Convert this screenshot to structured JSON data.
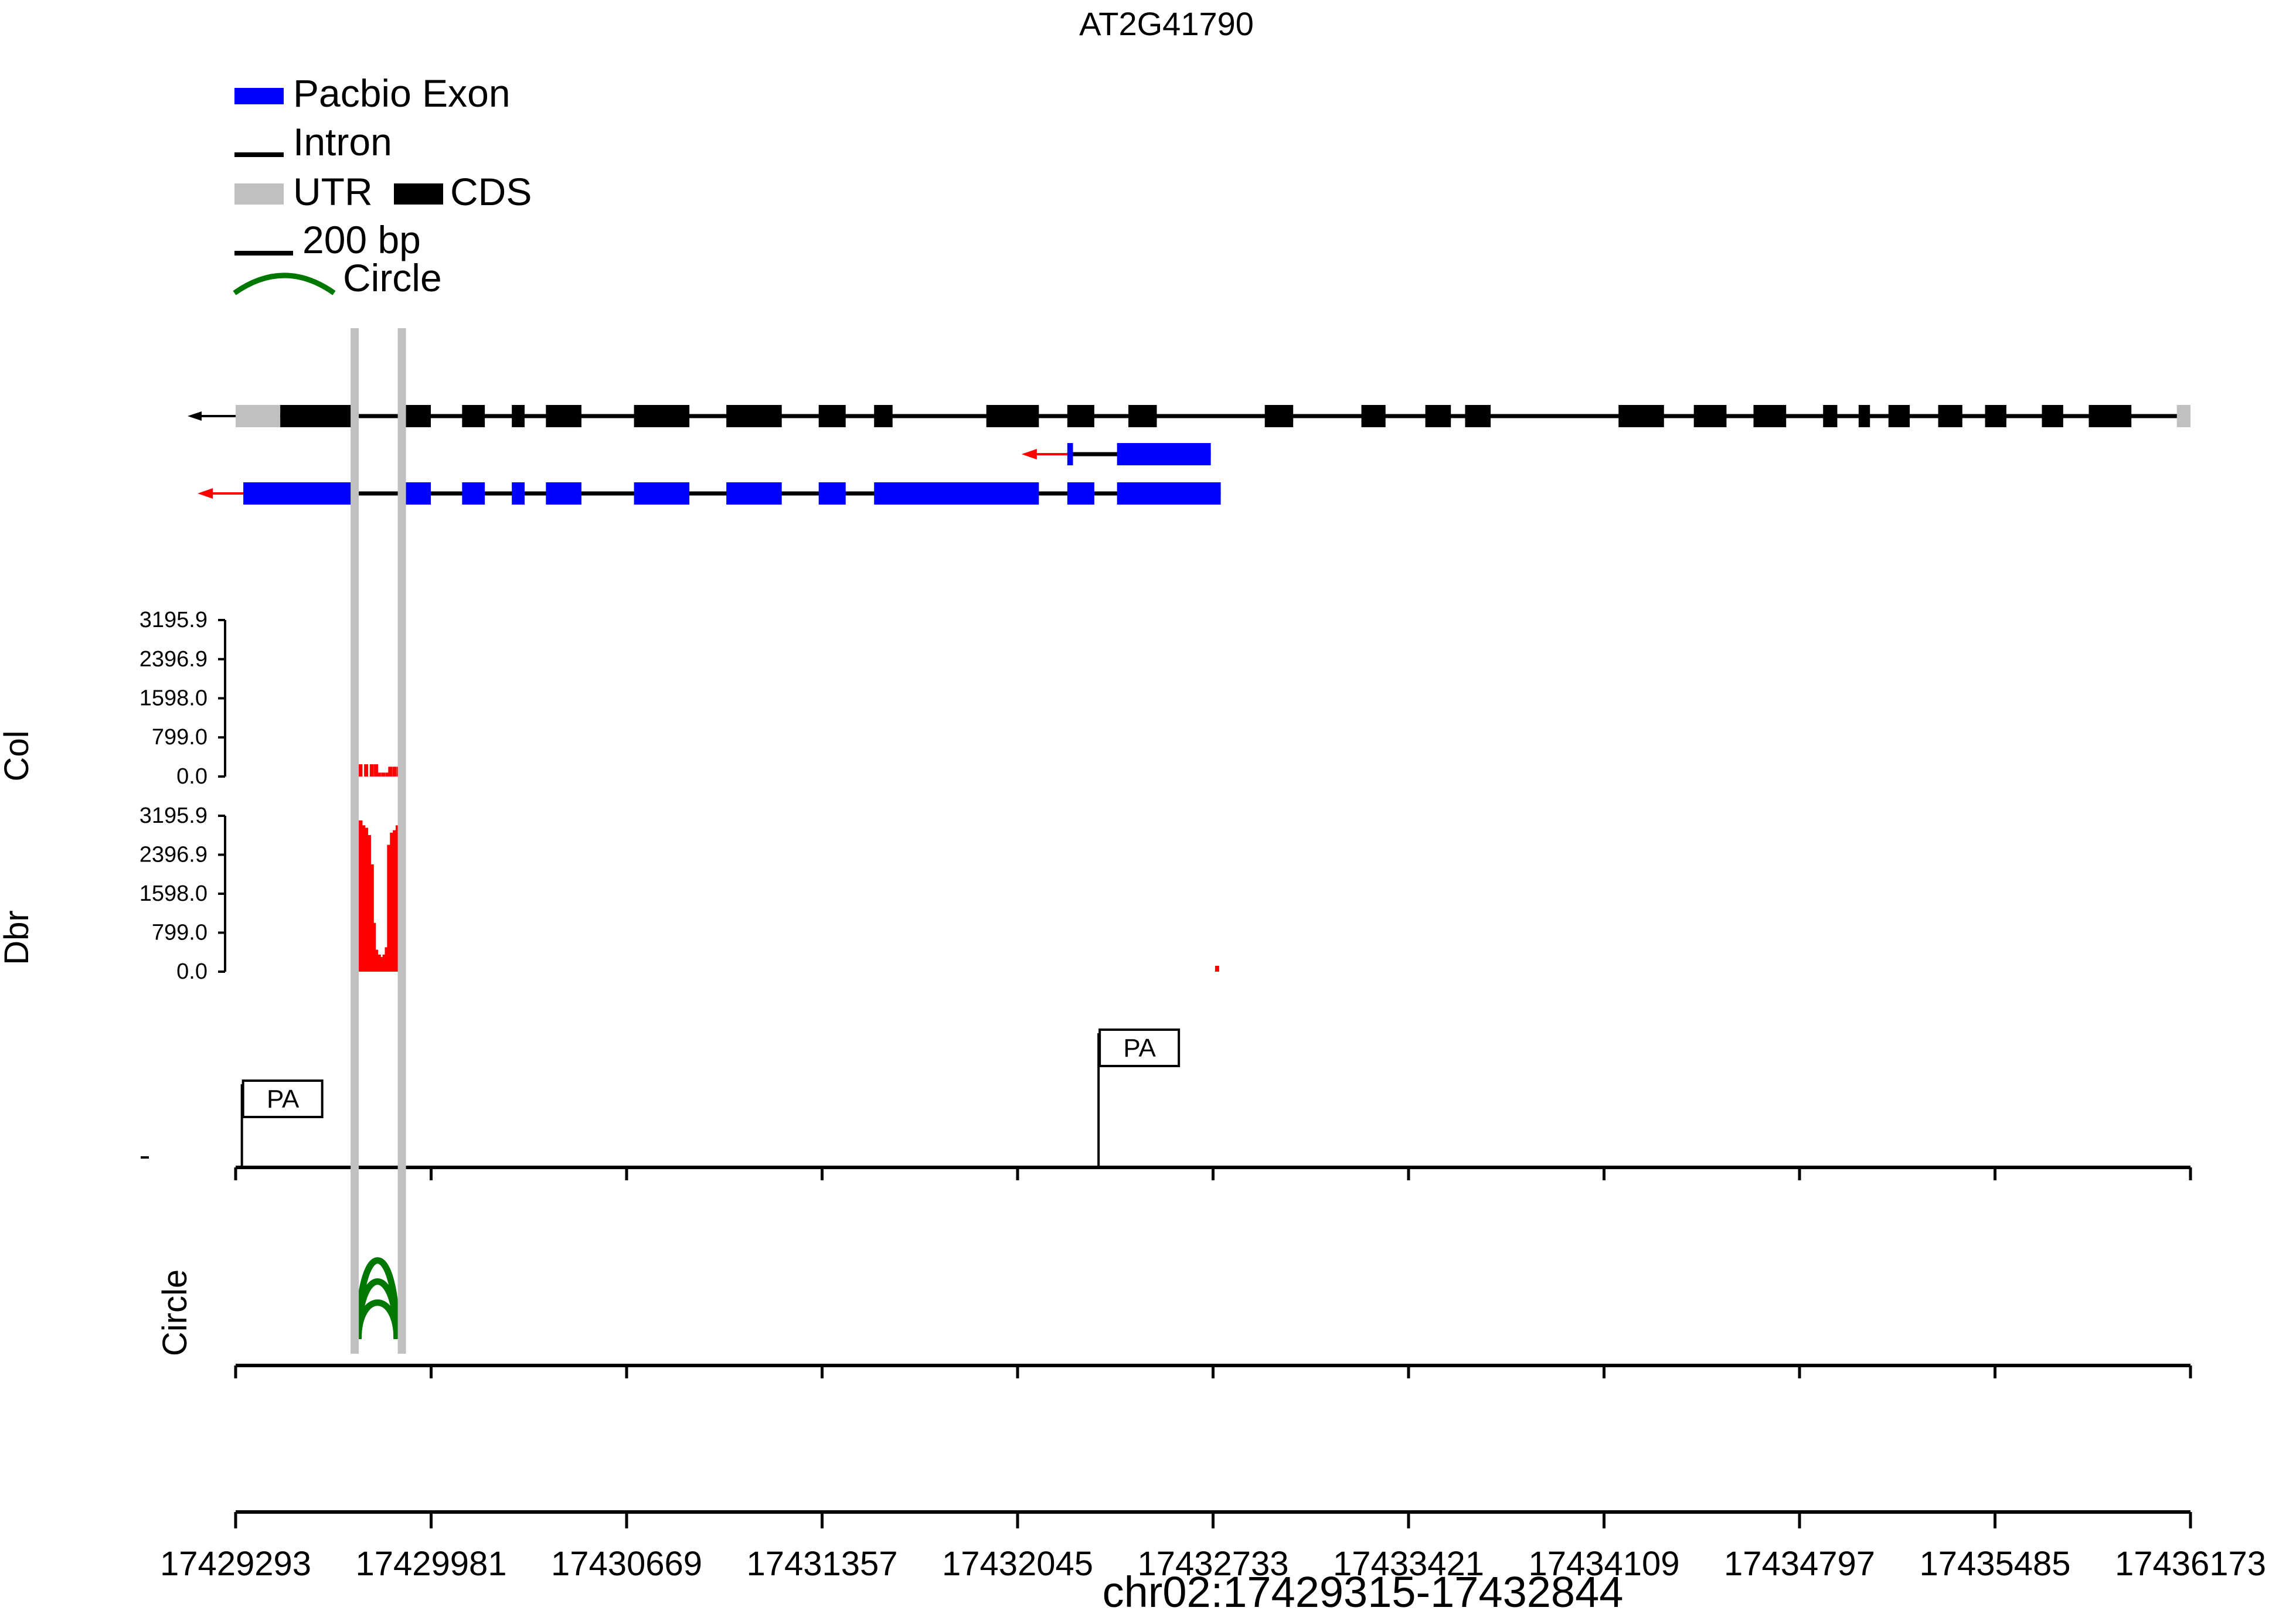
{
  "chart_data": {
    "type": "genome_track",
    "title": "AT2G41790",
    "xlabel": "chr02:17429315-17432844",
    "xlim": [
      17429293,
      17436173
    ],
    "xticks": [
      "17429293",
      "17429981",
      "17430669",
      "17431357",
      "17432045",
      "17432733",
      "17433421",
      "17434109",
      "17434797",
      "17435485",
      "17436173"
    ],
    "legend": {
      "exon": "Pacbio Exon",
      "intron": "Intron",
      "utr": "UTR",
      "cds": "CDS",
      "scale": "200 bp",
      "circle": "Circle"
    },
    "colors": {
      "exon": "#0000ff",
      "intron": "#000000",
      "utr": "#c0c0c0",
      "cds": "#000000",
      "coverage": "#ff0000",
      "circle": "#007700",
      "arrow": "#ff0000",
      "highlight": "#c0c0c0"
    },
    "strand": "minus",
    "highlight_region": [
      17429712,
      17429878
    ],
    "gene_model": {
      "utr": [
        [
          17429293,
          17429450
        ],
        [
          17436125,
          17436173
        ]
      ],
      "cds": [
        [
          17429450,
          17429700
        ],
        [
          17429880,
          17429980
        ],
        [
          17430090,
          17430170
        ],
        [
          17430265,
          17430310
        ],
        [
          17430385,
          17430510
        ],
        [
          17430695,
          17430890
        ],
        [
          17431020,
          17431215
        ],
        [
          17431345,
          17431440
        ],
        [
          17431540,
          17431605
        ],
        [
          17431935,
          17432120
        ],
        [
          17432220,
          17432315
        ],
        [
          17432435,
          17432535
        ],
        [
          17432915,
          17433015
        ],
        [
          17433255,
          17433340
        ],
        [
          17433480,
          17433570
        ],
        [
          17433620,
          17433710
        ],
        [
          17434160,
          17434320
        ],
        [
          17434425,
          17434540
        ],
        [
          17434635,
          17434750
        ],
        [
          17434880,
          17434930
        ],
        [
          17435005,
          17435045
        ],
        [
          17435110,
          17435185
        ],
        [
          17435285,
          17435370
        ],
        [
          17435450,
          17435525
        ],
        [
          17435650,
          17435725
        ],
        [
          17435815,
          17435965
        ]
      ]
    },
    "isoforms": [
      {
        "exons": [
          [
            17432220,
            17432240
          ],
          [
            17432395,
            17432725
          ]
        ]
      },
      {
        "exons": [
          [
            17429320,
            17429700
          ],
          [
            17429880,
            17429980
          ],
          [
            17430090,
            17430170
          ],
          [
            17430265,
            17430310
          ],
          [
            17430385,
            17430510
          ],
          [
            17430695,
            17430890
          ],
          [
            17431020,
            17431215
          ],
          [
            17431345,
            17431440
          ],
          [
            17431540,
            17432120
          ],
          [
            17432220,
            17432315
          ],
          [
            17432395,
            17432760
          ]
        ]
      }
    ],
    "tracks": [
      {
        "name": "Col",
        "yticks": [
          "3195.9",
          "2396.9",
          "1598.0",
          "799.0",
          "0.0"
        ],
        "ylim": [
          0,
          3195.9
        ],
        "coverage": [
          [
            17429725,
            250
          ],
          [
            17429745,
            250
          ],
          [
            17429765,
            250
          ],
          [
            17429780,
            250
          ],
          [
            17429790,
            80
          ],
          [
            17429805,
            80
          ],
          [
            17429820,
            80
          ],
          [
            17429830,
            200
          ],
          [
            17429845,
            200
          ],
          [
            17429860,
            200
          ]
        ]
      },
      {
        "name": "Dbr",
        "yticks": [
          "3195.9",
          "2396.9",
          "1598.0",
          "799.0",
          "0.0"
        ],
        "ylim": [
          0,
          3195.9
        ],
        "coverage": [
          [
            17429725,
            3100
          ],
          [
            17429735,
            3000
          ],
          [
            17429745,
            2950
          ],
          [
            17429755,
            2800
          ],
          [
            17429765,
            2200
          ],
          [
            17429772,
            1000
          ],
          [
            17429780,
            450
          ],
          [
            17429790,
            350
          ],
          [
            17429800,
            300
          ],
          [
            17429810,
            350
          ],
          [
            17429818,
            500
          ],
          [
            17429826,
            2600
          ],
          [
            17429836,
            2850
          ],
          [
            17429846,
            2900
          ],
          [
            17429856,
            3000
          ],
          [
            17429866,
            3150
          ],
          [
            17432740,
            120
          ]
        ]
      }
    ],
    "pa_sites": [
      {
        "label": "PA",
        "pos": 17429315,
        "level": 1
      },
      {
        "label": "PA",
        "pos": 17432330,
        "level": 2
      }
    ],
    "circle_track": {
      "name": "Circle",
      "arcs": [
        [
          17429725,
          17429860,
          1
        ],
        [
          17429725,
          17429860,
          2
        ],
        [
          17429725,
          17429860,
          3
        ]
      ]
    }
  }
}
